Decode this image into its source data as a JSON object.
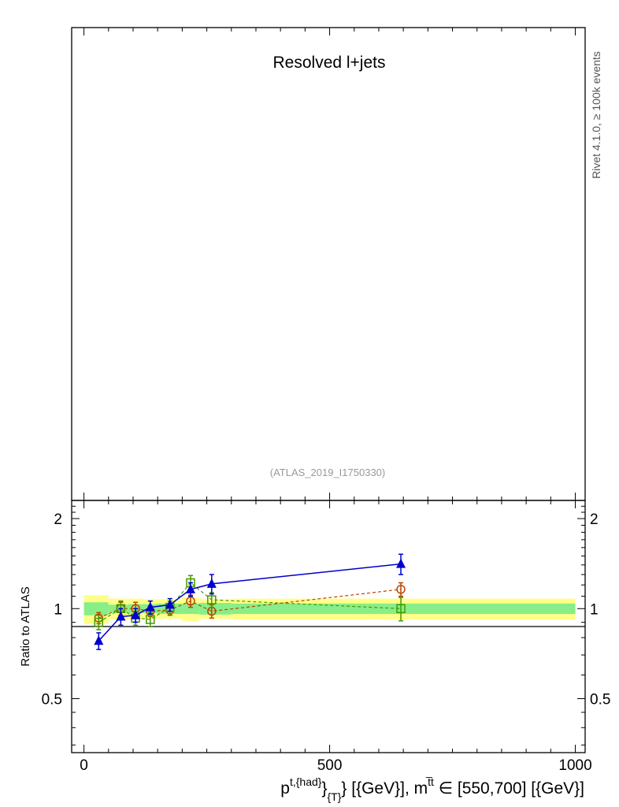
{
  "figure": {
    "title": "Resolved l+jets",
    "watermark": "(ATLAS_2019_I1750330)",
    "side_label": "Rivet 4.1.0, ≥ 100k events"
  },
  "chart_data": {
    "type": "scatter",
    "title": "Resolved l+jets",
    "xlabel": "p^{t,{had}}_{T} [{GeV}], m^{t̅t} ∈ [550,700] [{GeV}]",
    "ylabel": "Ratio to ATLAS",
    "xlim": [
      -25,
      1020
    ],
    "ylim": [
      0.33,
      2.3
    ],
    "yscale": "log",
    "xticks": [
      0,
      500,
      1000
    ],
    "xtick_labels": [
      "0",
      "500",
      "1000"
    ],
    "yticks": [
      0.5,
      1,
      2
    ],
    "ytick_labels": [
      "0.5",
      "1",
      "2"
    ],
    "grid": false,
    "bins": [
      {
        "lo": 0,
        "hi": 50
      },
      {
        "lo": 50,
        "hi": 90
      },
      {
        "lo": 90,
        "hi": 120
      },
      {
        "lo": 120,
        "hi": 150
      },
      {
        "lo": 150,
        "hi": 200
      },
      {
        "lo": 200,
        "hi": 235
      },
      {
        "lo": 235,
        "hi": 300
      },
      {
        "lo": 300,
        "hi": 1000
      }
    ],
    "reference_band": {
      "inner_halfwidth": [
        0.05,
        0.03,
        0.035,
        0.035,
        0.04,
        0.04,
        0.045,
        0.04
      ],
      "outer_halfwidth": [
        0.11,
        0.08,
        0.08,
        0.075,
        0.075,
        0.09,
        0.075,
        0.08
      ],
      "inner_color": "#88ee88",
      "outer_color": "#ffff88"
    },
    "series": [
      {
        "style": "circle",
        "color": "#bb4400",
        "linestyle": "dashed",
        "x": [
          30,
          75,
          105,
          135,
          175,
          217,
          260,
          645
        ],
        "y": [
          0.93,
          1.0,
          1.0,
          0.98,
          0.99,
          1.06,
          0.98,
          1.16
        ],
        "err": [
          0.04,
          0.05,
          0.05,
          0.04,
          0.04,
          0.05,
          0.05,
          0.06
        ]
      },
      {
        "style": "square",
        "color": "#449900",
        "linestyle": "dashed",
        "x": [
          30,
          75,
          105,
          135,
          175,
          217,
          260,
          645
        ],
        "y": [
          0.9,
          1.0,
          0.93,
          0.92,
          1.01,
          1.22,
          1.07,
          1.0
        ],
        "err": [
          0.05,
          0.06,
          0.05,
          0.05,
          0.05,
          0.07,
          0.06,
          0.09
        ]
      },
      {
        "style": "triangle",
        "color": "#0000cc",
        "linestyle": "solid",
        "x": [
          30,
          75,
          105,
          135,
          175,
          217,
          260,
          645
        ],
        "y": [
          0.78,
          0.94,
          0.95,
          1.01,
          1.03,
          1.16,
          1.21,
          1.41
        ],
        "err": [
          0.05,
          0.06,
          0.05,
          0.05,
          0.05,
          0.06,
          0.09,
          0.11
        ]
      }
    ]
  }
}
